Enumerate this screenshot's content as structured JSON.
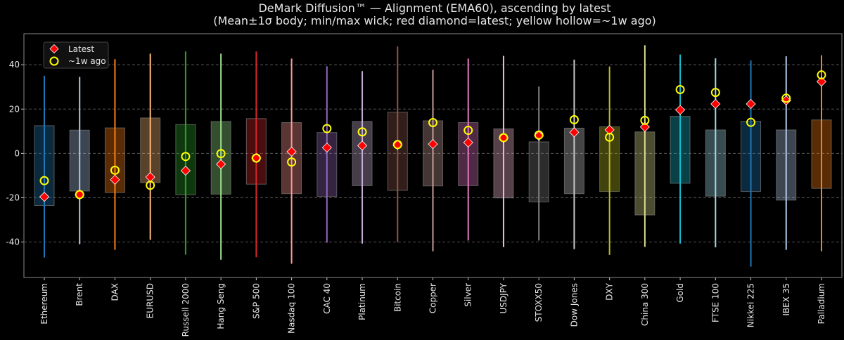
{
  "chart_data": {
    "type": "box-range",
    "title": "DeMark Diffusion™ — Alignment (EMA60), ascending by latest",
    "subtitle": "(Mean±1σ body; min/max wick; red diamond=latest; yellow hollow=~1w ago)",
    "xlabel": "",
    "ylabel": "",
    "ylim": [
      -56,
      54
    ],
    "yticks": [
      -40,
      -20,
      0,
      20,
      40
    ],
    "grid": true,
    "legend_position": "top-left",
    "legend": [
      {
        "label": "Latest",
        "marker": "diamond",
        "color": "#ff0000"
      },
      {
        "label": "~1w ago",
        "marker": "hollow-circle",
        "color": "#ffff00"
      }
    ],
    "categories": [
      "Ethereum",
      "Brent",
      "DAX",
      "EURUSD",
      "Russell 2000",
      "Hang Seng",
      "S&P 500",
      "Nasdaq 100",
      "CAC 40",
      "Platinum",
      "Bitcoin",
      "Copper",
      "Silver",
      "USDJPY",
      "STOXX50",
      "Dow Jones",
      "DXY",
      "China 300",
      "Gold",
      "FTSE 100",
      "Nikkei 225",
      "IBEX 35",
      "Palladium"
    ],
    "colors": [
      "#1f77b4",
      "#aec7e8",
      "#ff7f0e",
      "#ffbb78",
      "#2ca02c",
      "#98df8a",
      "#d62728",
      "#ff9896",
      "#9467bd",
      "#c5b0d5",
      "#8c564b",
      "#c49c94",
      "#e377c2",
      "#f7b6d2",
      "#7f7f7f",
      "#c7c7c7",
      "#bcbd22",
      "#dbdb8d",
      "#17becf",
      "#9edae5",
      "#1f77b4",
      "#aec7e8",
      "#ff7f0e"
    ],
    "body_high": [
      12.5,
      10.5,
      11.5,
      16.0,
      13.0,
      14.4,
      15.7,
      13.9,
      9.4,
      14.4,
      18.6,
      14.7,
      13.9,
      11.1,
      5.2,
      11.4,
      12.0,
      9.7,
      16.7,
      10.6,
      14.5,
      10.6,
      15.1
    ],
    "body_low": [
      -23.5,
      -17.0,
      -17.7,
      -13.2,
      -18.7,
      -18.4,
      -13.9,
      -18.2,
      -19.4,
      -14.6,
      -16.7,
      -14.7,
      -14.6,
      -20.1,
      -21.9,
      -18.2,
      -17.2,
      -27.8,
      -13.5,
      -19.3,
      -17.2,
      -21.1,
      -15.8
    ],
    "wick_max": [
      35.0,
      34.5,
      42.5,
      45.0,
      46.0,
      45.0,
      46.0,
      42.8,
      39.3,
      37.1,
      48.3,
      37.7,
      42.8,
      44.0,
      30.2,
      42.3,
      39.2,
      48.8,
      44.6,
      42.9,
      41.9,
      43.8,
      44.3
    ],
    "wick_min": [
      -47.0,
      -41.0,
      -43.5,
      -39.0,
      -45.7,
      -48.0,
      -46.9,
      -49.8,
      -40.3,
      -40.7,
      -40.0,
      -44.2,
      -39.3,
      -42.3,
      -39.3,
      -43.2,
      -45.8,
      -42.2,
      -40.7,
      -42.4,
      -51.1,
      -43.5,
      -44.2
    ],
    "latest": [
      -19.6,
      -18.6,
      -11.9,
      -10.7,
      -7.8,
      -4.9,
      -2.1,
      0.8,
      2.6,
      3.5,
      3.8,
      4.2,
      4.9,
      7.0,
      7.9,
      9.5,
      10.6,
      11.9,
      19.6,
      22.3,
      22.3,
      23.9,
      32.4
    ],
    "week_ago": [
      -12.3,
      -18.6,
      -7.6,
      -14.4,
      -1.4,
      -0.1,
      -2.1,
      -3.9,
      11.2,
      9.7,
      4.0,
      13.9,
      10.4,
      7.1,
      8.3,
      15.2,
      7.3,
      14.9,
      28.8,
      27.5,
      14.0,
      24.9,
      35.4
    ]
  }
}
